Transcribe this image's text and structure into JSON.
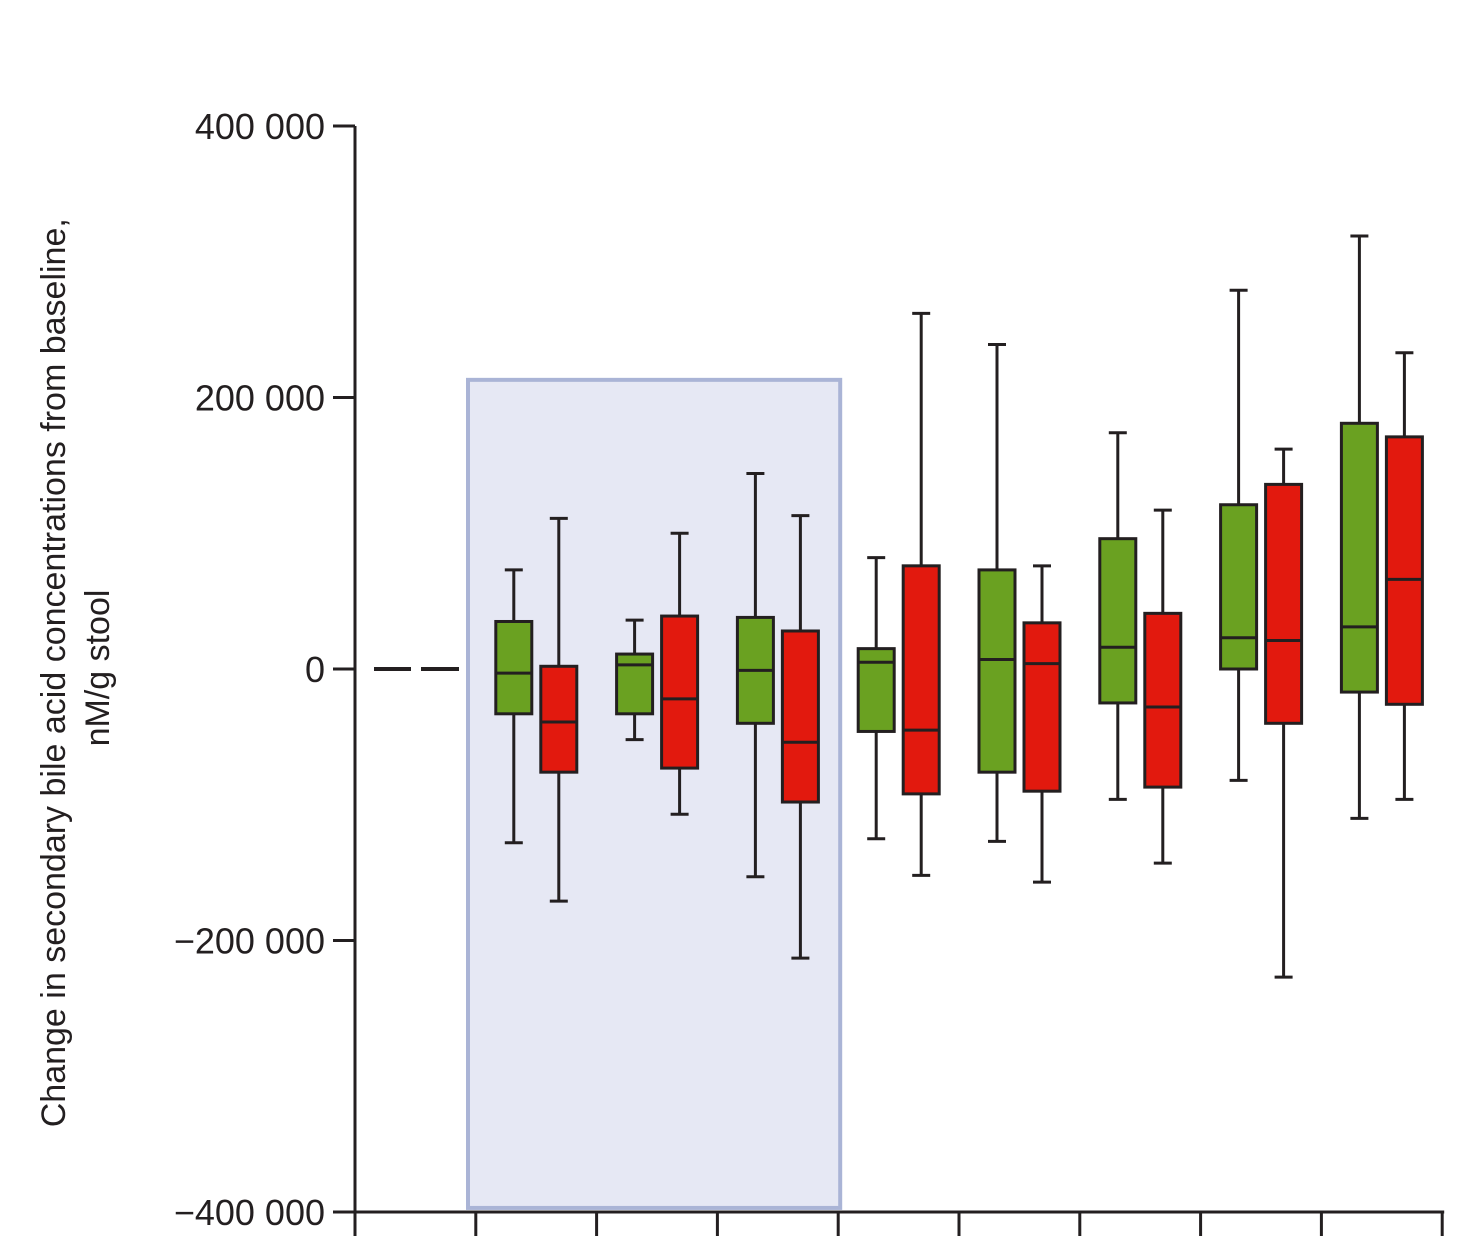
{
  "chart_data": {
    "type": "box",
    "ylabel_lines": [
      "Change in secondary bile acid concentrations from baseline,",
      "nM/g stool"
    ],
    "ylim": [
      -400000,
      400000
    ],
    "y_ticks": [
      400000,
      200000,
      0,
      -200000,
      -400000
    ],
    "y_tick_labels": [
      "400 000",
      "200 000",
      "0",
      "−200 000",
      "−400 000"
    ],
    "num_groups": 9,
    "highlight_groups": [
      1,
      4
    ],
    "colors": {
      "green": "#6aa121",
      "red": "#e2190e",
      "highlight_fill": "#e6e8f4",
      "highlight_stroke": "#aab4d6",
      "axis": "#231f20"
    },
    "baseline_group": {
      "group": 0,
      "value": 0
    },
    "boxes": [
      {
        "group": 1,
        "color": "green",
        "whisker_low": -128000,
        "q1": -33000,
        "median": -3000,
        "q3": 35000,
        "whisker_high": 73000
      },
      {
        "group": 1,
        "color": "red",
        "whisker_low": -171000,
        "q1": -76000,
        "median": -39000,
        "q3": 2000,
        "whisker_high": 111000
      },
      {
        "group": 2,
        "color": "green",
        "whisker_low": -52000,
        "q1": -33000,
        "median": 3000,
        "q3": 11000,
        "whisker_high": 36000
      },
      {
        "group": 2,
        "color": "red",
        "whisker_low": -107000,
        "q1": -73000,
        "median": -22000,
        "q3": 39000,
        "whisker_high": 100000
      },
      {
        "group": 3,
        "color": "green",
        "whisker_low": -153000,
        "q1": -40000,
        "median": -1000,
        "q3": 38000,
        "whisker_high": 144000
      },
      {
        "group": 3,
        "color": "red",
        "whisker_low": -213000,
        "q1": -98000,
        "median": -54000,
        "q3": 28000,
        "whisker_high": 113000
      },
      {
        "group": 4,
        "color": "green",
        "whisker_low": -125000,
        "q1": -46000,
        "median": 5000,
        "q3": 15000,
        "whisker_high": 82000
      },
      {
        "group": 4,
        "color": "red",
        "whisker_low": -152000,
        "q1": -92000,
        "median": -45000,
        "q3": 76000,
        "whisker_high": 262000
      },
      {
        "group": 5,
        "color": "green",
        "whisker_low": -127000,
        "q1": -76000,
        "median": 7000,
        "q3": 73000,
        "whisker_high": 239000
      },
      {
        "group": 5,
        "color": "red",
        "whisker_low": -157000,
        "q1": -90000,
        "median": 4000,
        "q3": 34000,
        "whisker_high": 76000
      },
      {
        "group": 6,
        "color": "green",
        "whisker_low": -96000,
        "q1": -25000,
        "median": 16000,
        "q3": 96000,
        "whisker_high": 174000
      },
      {
        "group": 6,
        "color": "red",
        "whisker_low": -143000,
        "q1": -87000,
        "median": -28000,
        "q3": 41000,
        "whisker_high": 117000
      },
      {
        "group": 7,
        "color": "green",
        "whisker_low": -82000,
        "q1": 0,
        "median": 23000,
        "q3": 121000,
        "whisker_high": 279000
      },
      {
        "group": 7,
        "color": "red",
        "whisker_low": -227000,
        "q1": -40000,
        "median": 21000,
        "q3": 136000,
        "whisker_high": 162000
      },
      {
        "group": 8,
        "color": "green",
        "whisker_low": -110000,
        "q1": -17000,
        "median": 31000,
        "q3": 181000,
        "whisker_high": 319000
      },
      {
        "group": 8,
        "color": "red",
        "whisker_low": -96000,
        "q1": -26000,
        "median": 66000,
        "q3": 171000,
        "whisker_high": 233000
      }
    ]
  }
}
